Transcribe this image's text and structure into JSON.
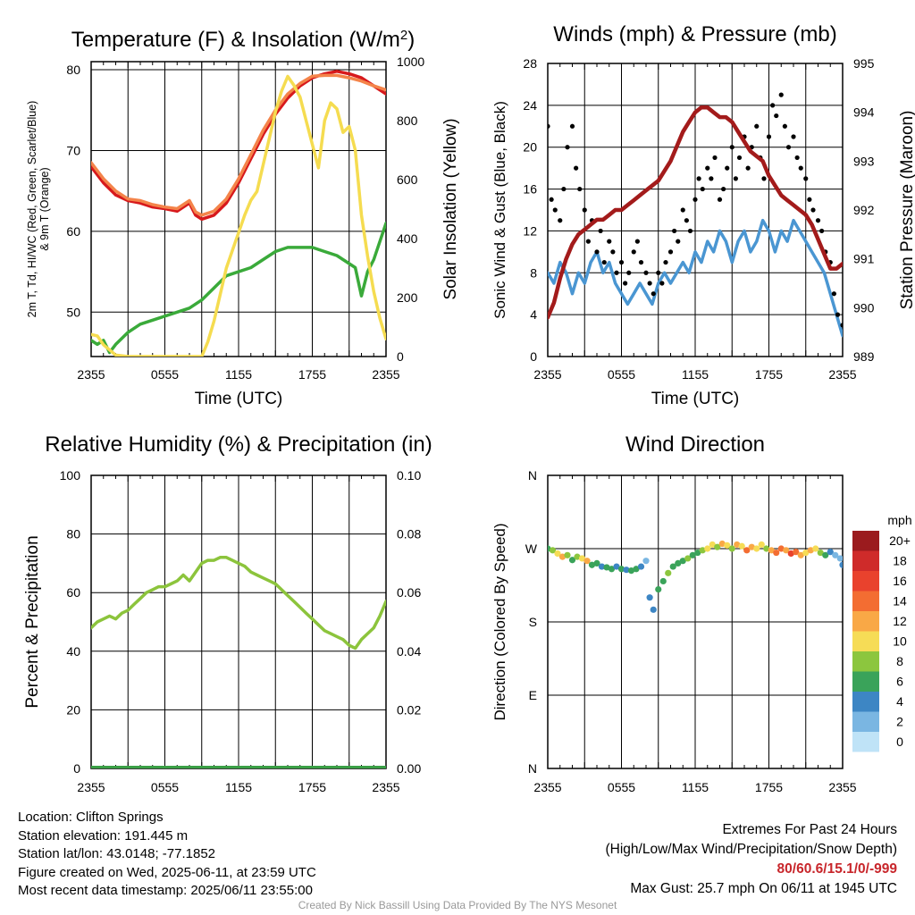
{
  "footer": {
    "location": "Location: Clifton Springs",
    "elevation": "Station elevation: 191.445 m",
    "latlon": "Station lat/lon: 43.0148; -77.1852",
    "created": "Figure created on Wed, 2025-06-11, at 23:59 UTC",
    "recent": "Most recent data timestamp: 2025/06/11 23:55:00",
    "extremes_title": "Extremes For Past 24 Hours",
    "extremes_sub": "(High/Low/Max Wind/Precipitation/Snow Depth)",
    "extremes_values": "80/60.6/15.1/0/-999",
    "max_gust": "Max Gust: 25.7 mph On 06/11 at 1945 UTC",
    "credit": "Created By Nick Bassill Using Data Provided By The NYS Mesonet"
  },
  "colors": {
    "temp_red": "#d7191c",
    "temp_orange": "#f4844a",
    "dewpoint_green": "#3aaa3a",
    "insolation_yellow": "#f5dc50",
    "wind_blue": "#4a96d2",
    "gust_black": "#000000",
    "pressure_maroon": "#a31b1b",
    "rh_green": "#8cc43c",
    "precip_green": "#3aa046"
  },
  "chart_data": [
    {
      "type": "line",
      "title": "Temperature (F) & Insolation (W/m²)",
      "xlabel": "Time (UTC)",
      "ylabel": "2m T, T_d, HI/WC (Red, Green, Scarlet/Blue) & 9m T (Orange)",
      "ylabel_lines": [
        "2m T, Td, HI/WC (Red, Green, Scarlet/Blue)",
        "& 9m T (Orange)"
      ],
      "y2label": "Solar Insolation (Yellow)",
      "xticks": [
        "2355",
        "0555",
        "1155",
        "1755",
        "2355"
      ],
      "x_hours": [
        0,
        6,
        12,
        18,
        24
      ],
      "xlim": [
        0,
        24
      ],
      "ylim": [
        44.5,
        81
      ],
      "yticks": [
        50,
        60,
        70,
        80
      ],
      "y2lim": [
        0,
        1000
      ],
      "y2ticks": [
        0,
        200,
        400,
        600,
        800,
        1000
      ],
      "series": [
        {
          "color": "#d7191c",
          "axis": "left",
          "x": [
            0,
            1,
            2,
            3,
            4,
            5,
            6,
            7,
            8,
            8.5,
            9,
            10,
            11,
            12,
            13,
            14,
            15,
            16,
            17,
            18,
            19,
            20,
            21,
            22,
            23,
            24
          ],
          "values": [
            68,
            66,
            64.5,
            63.8,
            63.5,
            63,
            62.8,
            62.5,
            63.5,
            62,
            61.5,
            62,
            63.5,
            66,
            69,
            72,
            74.5,
            76.5,
            78,
            79,
            79.5,
            79.8,
            79.5,
            79,
            78,
            77
          ]
        },
        {
          "color": "#f4844a",
          "axis": "left",
          "x": [
            0,
            1,
            2,
            3,
            4,
            5,
            6,
            7,
            8,
            8.5,
            9,
            10,
            11,
            12,
            13,
            14,
            15,
            16,
            17,
            18,
            19,
            20,
            21,
            22,
            23,
            24
          ],
          "values": [
            68.5,
            66.5,
            65,
            64,
            63.8,
            63.3,
            63,
            62.8,
            63.8,
            62.4,
            62,
            62.5,
            64,
            66.5,
            69.5,
            72.5,
            75,
            77,
            78.3,
            79.2,
            79.3,
            79.3,
            79,
            78.6,
            78,
            77.5
          ]
        },
        {
          "color": "#3aaa3a",
          "axis": "left",
          "x": [
            0,
            0.5,
            1,
            1.5,
            2,
            3,
            4,
            5,
            6,
            7,
            8,
            9,
            10,
            11,
            12,
            13,
            14,
            15,
            16,
            17,
            18,
            19,
            20,
            21,
            21.5,
            22,
            22.5,
            23,
            24
          ],
          "values": [
            46.5,
            46,
            46.5,
            45,
            46,
            47.5,
            48.5,
            49,
            49.5,
            50,
            50.5,
            51.5,
            53,
            54.5,
            55,
            55.5,
            56.5,
            57.5,
            58,
            58,
            58,
            57.5,
            57,
            56,
            55.5,
            52,
            55,
            56.5,
            61
          ]
        },
        {
          "color": "#f5dc50",
          "axis": "right",
          "x": [
            0,
            0.5,
            1,
            2,
            3,
            4,
            5,
            6,
            7,
            8,
            9,
            9.5,
            10,
            10.5,
            11,
            11.5,
            12,
            12.5,
            13,
            13.5,
            14,
            14.5,
            15,
            15.5,
            16,
            16.5,
            17,
            17.5,
            18,
            18.5,
            19,
            19.5,
            20,
            20.5,
            21,
            21.5,
            22,
            22.5,
            23,
            23.5,
            24
          ],
          "values": [
            75,
            70,
            40,
            5,
            0,
            0,
            0,
            0,
            0,
            0,
            0,
            50,
            120,
            210,
            300,
            360,
            420,
            480,
            530,
            560,
            650,
            740,
            830,
            900,
            950,
            920,
            880,
            800,
            720,
            640,
            800,
            860,
            840,
            760,
            780,
            700,
            480,
            340,
            220,
            130,
            60
          ]
        }
      ]
    },
    {
      "type": "line",
      "title": "Winds (mph) & Pressure (mb)",
      "xlabel": "Time (UTC)",
      "ylabel": "Sonic Wind & Gust (Blue, Black)",
      "y2label": "Station Pressure (Maroon)",
      "xticks": [
        "2355",
        "0555",
        "1155",
        "1755",
        "2355"
      ],
      "x_hours": [
        0,
        6,
        12,
        18,
        24
      ],
      "xlim": [
        0,
        24
      ],
      "ylim": [
        0,
        28
      ],
      "yticks": [
        0,
        4,
        8,
        12,
        16,
        20,
        24,
        28
      ],
      "y2lim": [
        989,
        995
      ],
      "y2ticks": [
        989,
        990,
        991,
        992,
        993,
        994,
        995
      ],
      "series": [
        {
          "color": "#4a96d2",
          "axis": "left",
          "x": [
            0,
            0.5,
            1,
            1.5,
            2,
            2.5,
            3,
            3.5,
            4,
            4.5,
            5,
            5.5,
            6,
            6.5,
            7,
            7.5,
            8,
            8.5,
            9,
            9.5,
            10,
            10.5,
            11,
            11.5,
            12,
            12.5,
            13,
            13.5,
            14,
            14.5,
            15,
            15.5,
            16,
            16.5,
            17,
            17.5,
            18,
            18.5,
            19,
            19.5,
            20,
            20.5,
            21,
            21.5,
            22,
            22.5,
            23,
            23.5,
            24
          ],
          "values": [
            8,
            7,
            9,
            8,
            6,
            8,
            7,
            9,
            10,
            8,
            9,
            7,
            6,
            5,
            6,
            7,
            6,
            5,
            7,
            8,
            7,
            8,
            9,
            8,
            10,
            9,
            11,
            10,
            12,
            11,
            9,
            11,
            12,
            10,
            11,
            13,
            12,
            10,
            12,
            11,
            13,
            12,
            11,
            10,
            9,
            8,
            6,
            4,
            2
          ]
        },
        {
          "color": "#000000",
          "axis": "left",
          "kind": "scatter",
          "x": [
            0,
            0.3,
            0.6,
            1,
            1.3,
            1.6,
            2,
            2.3,
            2.6,
            3,
            3.3,
            3.6,
            4,
            4.3,
            4.6,
            5,
            5.3,
            5.6,
            6,
            6.3,
            6.6,
            7,
            7.3,
            7.6,
            8,
            8.3,
            8.6,
            9,
            9.3,
            9.6,
            10,
            10.3,
            10.6,
            11,
            11.3,
            11.6,
            12,
            12.3,
            12.6,
            13,
            13.3,
            13.6,
            14,
            14.3,
            14.6,
            15,
            15.3,
            15.6,
            16,
            16.3,
            16.6,
            17,
            17.3,
            17.6,
            18,
            18.3,
            18.6,
            19,
            19.3,
            19.6,
            20,
            20.3,
            20.6,
            21,
            21.3,
            21.6,
            22,
            22.3,
            22.6,
            23,
            23.3,
            23.6,
            24
          ],
          "values": [
            22,
            15,
            14,
            13,
            16,
            20,
            22,
            18,
            16,
            14,
            11,
            13,
            10,
            12,
            9,
            11,
            10,
            8,
            9,
            7,
            8,
            10,
            11,
            9,
            8,
            7,
            6,
            8,
            7,
            9,
            10,
            12,
            11,
            14,
            13,
            12,
            15,
            17,
            16,
            18,
            17,
            19,
            15,
            16,
            18,
            20,
            17,
            19,
            21,
            18,
            20,
            22,
            19,
            17,
            21,
            24,
            23,
            25,
            22,
            20,
            21,
            19,
            18,
            17,
            15,
            14,
            13,
            12,
            10,
            9,
            6,
            4,
            3
          ]
        },
        {
          "color": "#a31b1b",
          "axis": "right",
          "x": [
            0,
            0.5,
            1,
            1.5,
            2,
            2.5,
            3,
            3.5,
            4,
            4.5,
            5,
            5.5,
            6,
            6.5,
            7,
            7.5,
            8,
            8.5,
            9,
            9.5,
            10,
            10.5,
            11,
            11.5,
            12,
            12.5,
            13,
            13.5,
            14,
            14.5,
            15,
            15.5,
            16,
            16.5,
            17,
            17.5,
            18,
            18.5,
            19,
            19.5,
            20,
            20.5,
            21,
            21.5,
            22,
            22.5,
            23,
            23.5,
            24
          ],
          "values": [
            989.8,
            990.1,
            990.6,
            991,
            991.3,
            991.5,
            991.6,
            991.7,
            991.8,
            991.8,
            991.9,
            992,
            992,
            992.1,
            992.2,
            992.3,
            992.4,
            992.5,
            992.6,
            992.8,
            993,
            993.3,
            993.6,
            993.8,
            994,
            994.1,
            994.1,
            994,
            993.9,
            993.9,
            993.8,
            993.6,
            993.4,
            993.2,
            993.1,
            993,
            992.7,
            992.5,
            992.3,
            992.2,
            992.1,
            992,
            991.9,
            991.7,
            991.4,
            991.1,
            990.8,
            990.8,
            990.9
          ]
        }
      ]
    },
    {
      "type": "line",
      "title": "Relative Humidity (%) & Precipitation (in)",
      "xlabel": "",
      "ylabel": "Percent & Precipitation",
      "xticks": [
        "2355",
        "0555",
        "1155",
        "1755",
        "2355"
      ],
      "x_hours": [
        0,
        6,
        12,
        18,
        24
      ],
      "xlim": [
        0,
        24
      ],
      "ylim": [
        0,
        100
      ],
      "yticks": [
        0,
        20,
        40,
        60,
        80,
        100
      ],
      "y2lim": [
        0,
        0.1
      ],
      "y2ticks": [
        "0.00",
        "0.02",
        "0.04",
        "0.06",
        "0.08",
        "0.10"
      ],
      "series": [
        {
          "color": "#8cc43c",
          "axis": "left",
          "x": [
            0,
            0.5,
            1,
            1.5,
            2,
            2.5,
            3,
            3.5,
            4,
            4.5,
            5,
            5.5,
            6,
            6.5,
            7,
            7.5,
            8,
            8.5,
            9,
            9.5,
            10,
            10.5,
            11,
            11.5,
            12,
            12.5,
            13,
            13.5,
            14,
            14.5,
            15,
            15.5,
            16,
            16.5,
            17,
            17.5,
            18,
            18.5,
            19,
            19.5,
            20,
            20.5,
            21,
            21.5,
            22,
            22.5,
            23,
            23.5,
            24
          ],
          "values": [
            48,
            50,
            51,
            52,
            51,
            53,
            54,
            56,
            58,
            60,
            61,
            62,
            62,
            63,
            64,
            66,
            64,
            67,
            70,
            71,
            71,
            72,
            72,
            71,
            70,
            69,
            67,
            66,
            65,
            64,
            63,
            61,
            59,
            57,
            55,
            53,
            51,
            49,
            47,
            46,
            45,
            44,
            42,
            41,
            44,
            46,
            48,
            52,
            57
          ]
        },
        {
          "color": "#3aa046",
          "axis": "right",
          "x": [
            0,
            24
          ],
          "values": [
            0,
            0
          ]
        }
      ]
    },
    {
      "type": "scatter",
      "title": "Wind Direction",
      "ylabel": "Direction (Colored By Speed)",
      "xticks": [
        "2355",
        "0555",
        "1155",
        "1755",
        "2355"
      ],
      "x_hours": [
        0,
        6,
        12,
        18,
        24
      ],
      "xlim": [
        0,
        24
      ],
      "ylim": [
        0,
        360
      ],
      "yticks": [
        {
          "v": 0,
          "label": "N"
        },
        {
          "v": 90,
          "label": "E"
        },
        {
          "v": 180,
          "label": "S"
        },
        {
          "v": 270,
          "label": "W"
        },
        {
          "v": 360,
          "label": "N"
        }
      ],
      "x": [
        0,
        0.4,
        0.8,
        1.2,
        1.6,
        2,
        2.4,
        2.8,
        3.2,
        3.6,
        4,
        4.4,
        4.8,
        5.2,
        5.6,
        6,
        6.4,
        6.8,
        7.2,
        7.6,
        8,
        8.3,
        8.6,
        9,
        9.4,
        9.8,
        10.2,
        10.6,
        11,
        11.4,
        11.8,
        12.2,
        12.6,
        13,
        13.4,
        13.8,
        14.2,
        14.6,
        15,
        15.4,
        15.8,
        16.2,
        16.6,
        17,
        17.4,
        17.8,
        18.2,
        18.6,
        19,
        19.4,
        19.8,
        20.2,
        20.6,
        21,
        21.4,
        21.8,
        22.2,
        22.6,
        23,
        23.4,
        23.8,
        24
      ],
      "values": [
        270,
        268,
        264,
        260,
        262,
        256,
        260,
        258,
        255,
        250,
        252,
        248,
        247,
        245,
        248,
        245,
        244,
        243,
        245,
        248,
        255,
        210,
        195,
        220,
        230,
        240,
        248,
        252,
        255,
        258,
        262,
        265,
        268,
        270,
        275,
        272,
        276,
        274,
        270,
        275,
        273,
        268,
        272,
        270,
        275,
        270,
        268,
        265,
        270,
        268,
        264,
        266,
        262,
        265,
        268,
        270,
        265,
        262,
        266,
        262,
        258,
        250
      ],
      "speeds": [
        6,
        8,
        10,
        12,
        8,
        6,
        8,
        10,
        12,
        7,
        6,
        5,
        6,
        6,
        5,
        6,
        4,
        6,
        6,
        4,
        3,
        4,
        4,
        6,
        7,
        8,
        6,
        6,
        7,
        8,
        7,
        6,
        9,
        10,
        11,
        8,
        12,
        10,
        9,
        12,
        10,
        14,
        12,
        10,
        11,
        9,
        13,
        14,
        15,
        12,
        16,
        14,
        12,
        10,
        12,
        11,
        9,
        6,
        4,
        3,
        3,
        4
      ],
      "colorbar": {
        "title": "mph",
        "labels": [
          "20+",
          "18",
          "16",
          "14",
          "12",
          "10",
          "8",
          "6",
          "4",
          "2",
          "0"
        ],
        "colors": [
          "#9b1b1e",
          "#cf2b2a",
          "#e9422d",
          "#f36d32",
          "#f9a846",
          "#f6dc56",
          "#8cc63e",
          "#3aa35a",
          "#3d86c4",
          "#7ab6e2",
          "#bfe3f7"
        ]
      }
    }
  ]
}
